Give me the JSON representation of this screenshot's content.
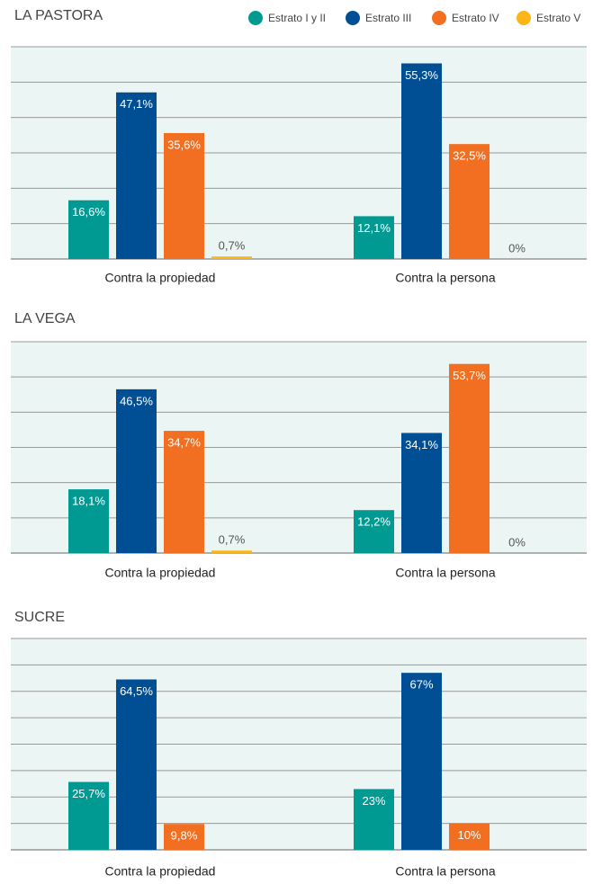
{
  "legend": [
    {
      "name": "Estrato I y II",
      "color": "#009a93"
    },
    {
      "name": "Estrato III",
      "color": "#004f94"
    },
    {
      "name": "Estrato IV",
      "color": "#f26f21"
    },
    {
      "name": "Estrato V",
      "color": "#fbb516"
    }
  ],
  "chart_data": [
    {
      "type": "bar",
      "title": "LA PASTORA",
      "categories": [
        "Contra la propiedad",
        "Contra la persona"
      ],
      "ylim": [
        0,
        60
      ],
      "yticks": [
        0,
        10,
        20,
        30,
        40,
        50,
        60
      ],
      "grid": true,
      "series": [
        {
          "values": [
            16.6,
            12.1
          ],
          "value_labels": [
            "16,6%",
            "12,1%"
          ]
        },
        {
          "values": [
            47.1,
            55.3
          ],
          "value_labels": [
            "47,1%",
            "55,3%"
          ]
        },
        {
          "values": [
            35.6,
            32.5
          ],
          "value_labels": [
            "35,6%",
            "32,5%"
          ]
        },
        {
          "values": [
            0.7,
            0
          ],
          "value_labels": [
            "0,7%",
            "0%"
          ]
        }
      ]
    },
    {
      "type": "bar",
      "title": "LA VEGA",
      "categories": [
        "Contra la propiedad",
        "Contra la persona"
      ],
      "ylim": [
        0,
        60
      ],
      "yticks": [
        0,
        10,
        20,
        30,
        40,
        50,
        60
      ],
      "grid": true,
      "series": [
        {
          "values": [
            18.1,
            12.2
          ],
          "value_labels": [
            "18,1%",
            "12,2%"
          ]
        },
        {
          "values": [
            46.5,
            34.1
          ],
          "value_labels": [
            "46,5%",
            "34,1%"
          ]
        },
        {
          "values": [
            34.7,
            53.7
          ],
          "value_labels": [
            "34,7%",
            "53,7%"
          ]
        },
        {
          "values": [
            0.7,
            0
          ],
          "value_labels": [
            "0,7%",
            "0%"
          ]
        }
      ]
    },
    {
      "type": "bar",
      "title": "SUCRE",
      "categories": [
        "Contra la propiedad",
        "Contra la persona"
      ],
      "ylim": [
        0,
        80
      ],
      "yticks": [
        0,
        10,
        20,
        30,
        40,
        50,
        60,
        70,
        80
      ],
      "grid": true,
      "series": [
        {
          "values": [
            25.7,
            23
          ],
          "value_labels": [
            "25,7%",
            "23%"
          ]
        },
        {
          "values": [
            64.5,
            67
          ],
          "value_labels": [
            "64,5%",
            "67%"
          ]
        },
        {
          "values": [
            9.8,
            10
          ],
          "value_labels": [
            "9,8%",
            "10%"
          ]
        }
      ]
    }
  ]
}
